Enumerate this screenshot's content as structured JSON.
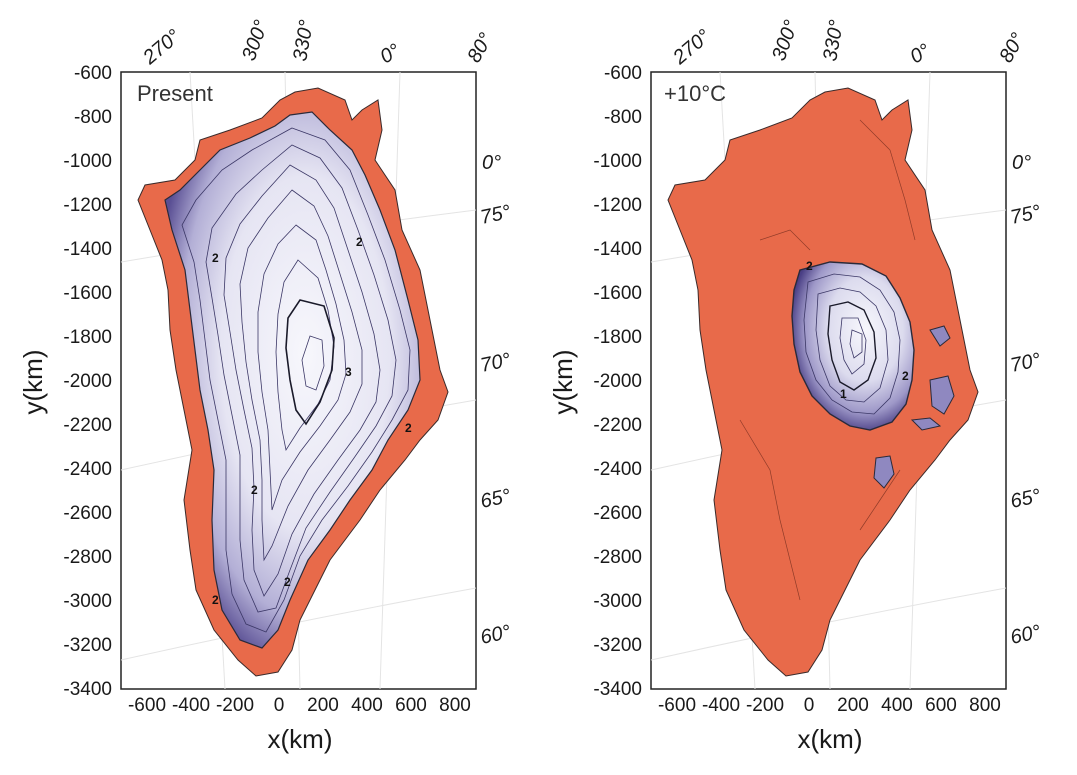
{
  "colors": {
    "ice_free": "#e86a4a",
    "ice_dark": "#5a4f94",
    "ice_mid": "#9e98c8",
    "ice_light": "#e6e5f3",
    "ice_white": "#f7f7fc",
    "contour": "#2a2a3a",
    "frame": "#222222"
  },
  "panels": [
    {
      "title": "Present",
      "xlabel": "x(km)",
      "ylabel": "y(km)",
      "x_ticks": [
        "-600",
        "-400",
        "-200",
        "0",
        "200",
        "400",
        "600",
        "800"
      ],
      "y_ticks": [
        "-600",
        "-800",
        "-1000",
        "-1200",
        "-1400",
        "-1600",
        "-1800",
        "-2000",
        "-2200",
        "-2400",
        "-2600",
        "-2800",
        "-3000",
        "-3200",
        "-3400"
      ],
      "longitude_labels": [
        "270°",
        "300°",
        "330°",
        "0°",
        "80°"
      ],
      "latitude_labels": [
        "0°",
        "75°",
        "70°",
        "65°",
        "60°"
      ],
      "contour_labels": [
        "2",
        "2",
        "2",
        "3",
        "2",
        "2",
        "2"
      ],
      "ice_extent": "full"
    },
    {
      "title": "+10°C",
      "xlabel": "x(km)",
      "ylabel": "y(km)",
      "x_ticks": [
        "-600",
        "-400",
        "-200",
        "0",
        "200",
        "400",
        "600",
        "800"
      ],
      "y_ticks": [
        "-600",
        "-800",
        "-1000",
        "-1200",
        "-1400",
        "-1600",
        "-1800",
        "-2000",
        "-2200",
        "-2400",
        "-2600",
        "-2800",
        "-3000",
        "-3200",
        "-3400"
      ],
      "longitude_labels": [
        "270°",
        "300°",
        "330°",
        "0°",
        "80°"
      ],
      "latitude_labels": [
        "0°",
        "75°",
        "70°",
        "65°",
        "60°"
      ],
      "contour_labels": [
        "2",
        "1",
        "2"
      ],
      "ice_extent": "remnant"
    }
  ]
}
